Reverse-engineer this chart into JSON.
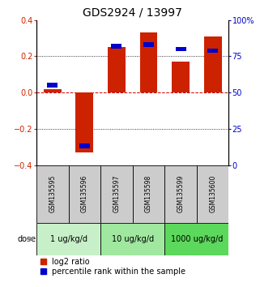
{
  "title": "GDS2924 / 13997",
  "samples": [
    "GSM135595",
    "GSM135596",
    "GSM135597",
    "GSM135598",
    "GSM135599",
    "GSM135600"
  ],
  "log2_ratio": [
    0.02,
    -0.33,
    0.25,
    0.33,
    0.17,
    0.31
  ],
  "percentile_rank": [
    55,
    13,
    82,
    83,
    80,
    79
  ],
  "dose_groups": [
    {
      "label": "1 ug/kg/d",
      "samples": [
        0,
        1
      ],
      "color": "#c8f0c8"
    },
    {
      "label": "10 ug/kg/d",
      "samples": [
        2,
        3
      ],
      "color": "#a0e8a0"
    },
    {
      "label": "1000 ug/kg/d",
      "samples": [
        4,
        5
      ],
      "color": "#5cd85c"
    }
  ],
  "bar_color_red": "#cc2200",
  "bar_color_blue": "#0000cc",
  "ylim_left": [
    -0.4,
    0.4
  ],
  "ylim_right": [
    0,
    100
  ],
  "yticks_left": [
    -0.4,
    -0.2,
    0.0,
    0.2,
    0.4
  ],
  "yticks_right": [
    0,
    25,
    50,
    75,
    100
  ],
  "ytick_labels_right": [
    "0",
    "25",
    "50",
    "75",
    "100%"
  ],
  "hlines_dotted": [
    0.2,
    -0.2
  ],
  "hline_dashed": 0.0,
  "bar_width": 0.55,
  "sample_bg_color": "#cccccc",
  "legend_red_label": "log2 ratio",
  "legend_blue_label": "percentile rank within the sample",
  "dose_label": "dose",
  "title_fontsize": 10,
  "tick_fontsize": 7,
  "legend_fontsize": 7,
  "sample_fontsize": 5.5,
  "dose_fontsize": 7
}
